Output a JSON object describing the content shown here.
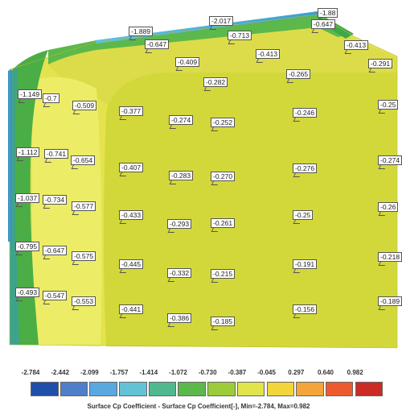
{
  "colors": {
    "background": "#ffffff",
    "surface_main": "#e4e34e",
    "surface_left": "#ecec66",
    "surface_right": "#d3d83a",
    "band_green": "#4bad45",
    "band_teal": "#3ea38c",
    "band_blue": "#2f8fc8",
    "top_cyan": "#5ec2dc"
  },
  "probes": [
    {
      "label": "-1.889"
    },
    {
      "label": "-2.017"
    },
    {
      "label": "-1.88"
    },
    {
      "label": "-0.647"
    },
    {
      "label": "-0.713"
    },
    {
      "label": "-0.647"
    },
    {
      "label": "-0.413"
    },
    {
      "label": "-0.409"
    },
    {
      "label": "-0.413"
    },
    {
      "label": "-0.291"
    },
    {
      "label": "-0.282"
    },
    {
      "label": "-0.265"
    },
    {
      "label": "-1.149"
    },
    {
      "label": "-0.7"
    },
    {
      "label": "-0.509"
    },
    {
      "label": "-0.377"
    },
    {
      "label": "-0.274"
    },
    {
      "label": "-0.252"
    },
    {
      "label": "-0.246"
    },
    {
      "label": "-0.25"
    },
    {
      "label": "-1.112"
    },
    {
      "label": "-0.741"
    },
    {
      "label": "-0.654"
    },
    {
      "label": "-0.407"
    },
    {
      "label": "-0.283"
    },
    {
      "label": "-0.270"
    },
    {
      "label": "-0.276"
    },
    {
      "label": "-0.274"
    },
    {
      "label": "-1.037"
    },
    {
      "label": "-0.734"
    },
    {
      "label": "-0.577"
    },
    {
      "label": "-0.433"
    },
    {
      "label": "-0.293"
    },
    {
      "label": "-0.261"
    },
    {
      "label": "-0.25"
    },
    {
      "label": "-0.26"
    },
    {
      "label": "-0.795"
    },
    {
      "label": "-0.647"
    },
    {
      "label": "-0.575"
    },
    {
      "label": "-0.445"
    },
    {
      "label": "-0.332"
    },
    {
      "label": "-0.215"
    },
    {
      "label": "-0.191"
    },
    {
      "label": "-0.218"
    },
    {
      "label": "-0.493"
    },
    {
      "label": "-0.547"
    },
    {
      "label": "-0.553"
    },
    {
      "label": "-0.441"
    },
    {
      "label": "-0.386"
    },
    {
      "label": "-0.185"
    },
    {
      "label": "-0.156"
    },
    {
      "label": "-0.189"
    }
  ],
  "legend": {
    "values": [
      "-2.784",
      "-2.442",
      "-2.099",
      "-1.757",
      "-1.414",
      "-1.072",
      "-0.730",
      "-0.387",
      "-0.045",
      "0.297",
      "0.640",
      "0.982"
    ],
    "swatches": [
      "#1f4fa8",
      "#4f7fc8",
      "#5aa8e0",
      "#63c3d6",
      "#4fb88f",
      "#5cb84a",
      "#9ccc3a",
      "#e2e44c",
      "#f2d53a",
      "#f3a43a",
      "#ee5a2f",
      "#cc2a25"
    ],
    "caption": "Surface Cp Coefficient  - Surface Cp Coefficient[-], Min=-2.784, Max=0.982"
  }
}
